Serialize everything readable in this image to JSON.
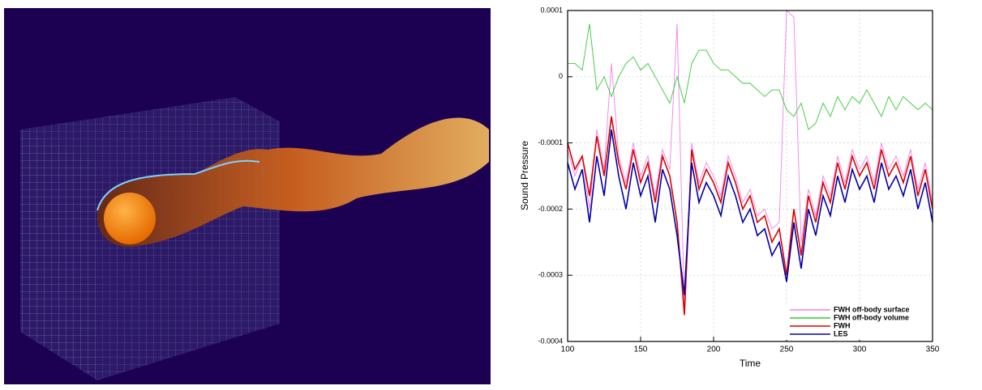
{
  "chart_data": {
    "type": "line",
    "xlabel": "Time",
    "ylabel": "Sound Pressure",
    "x": [
      100,
      105,
      110,
      115,
      120,
      125,
      130,
      135,
      140,
      145,
      150,
      155,
      160,
      165,
      170,
      175,
      180,
      185,
      190,
      195,
      200,
      205,
      210,
      215,
      220,
      225,
      230,
      235,
      240,
      245,
      250,
      255,
      260,
      265,
      270,
      275,
      280,
      285,
      290,
      295,
      300,
      305,
      310,
      315,
      320,
      325,
      330,
      335,
      340,
      345,
      350
    ],
    "xlim": [
      100,
      350
    ],
    "xticks": [
      100,
      150,
      200,
      250,
      300,
      350
    ],
    "ylim": [
      -0.0004,
      0.0001
    ],
    "yticks": [
      0.0001,
      0,
      -0.0001,
      -0.0002,
      -0.0003,
      -0.0004
    ],
    "grid": true,
    "legend": "lower right",
    "series": [
      {
        "name": "FWH off-body surface",
        "color": "#ee82ee",
        "values": [
          -0.00011,
          -0.00015,
          -0.00012,
          -0.0002,
          -8e-05,
          -0.00014,
          2e-05,
          -0.00012,
          -0.00016,
          -0.0001,
          -0.00015,
          -0.00012,
          -0.00018,
          -0.00011,
          -0.00014,
          8e-05,
          -0.00035,
          -0.0001,
          -0.00016,
          -0.00013,
          -0.00015,
          -0.00018,
          -0.00012,
          -0.00015,
          -0.00019,
          -0.00017,
          -0.00021,
          -0.0002,
          -0.00023,
          -0.00022,
          0.0001,
          9e-05,
          -0.00025,
          -0.00017,
          -0.00021,
          -0.00015,
          -0.00018,
          -0.00012,
          -0.00016,
          -0.00011,
          -0.00014,
          -0.00012,
          -0.00016,
          -0.0001,
          -0.00014,
          -0.00012,
          -0.00015,
          -0.00011,
          -0.00017,
          -0.00013,
          -0.00019
        ]
      },
      {
        "name": "FWH off-body volume",
        "color": "#33cc33",
        "values": [
          2e-05,
          2e-05,
          1e-05,
          8e-05,
          -2e-05,
          0.0,
          -3e-05,
          0.0,
          2e-05,
          3e-05,
          1e-05,
          2e-05,
          0.0,
          -2e-05,
          -4e-05,
          0.0,
          -4e-05,
          2e-05,
          4e-05,
          4e-05,
          2e-05,
          1e-05,
          1e-05,
          0.0,
          -1e-05,
          -1e-05,
          -2e-05,
          -3e-05,
          -2e-05,
          -2e-05,
          -5e-05,
          -6e-05,
          -4e-05,
          -8e-05,
          -7e-05,
          -4e-05,
          -6e-05,
          -3e-05,
          -5e-05,
          -3e-05,
          -4e-05,
          -2e-05,
          -4e-05,
          -6e-05,
          -3e-05,
          -5e-05,
          -3e-05,
          -4e-05,
          -5e-05,
          -4e-05,
          -5e-05
        ]
      },
      {
        "name": "FWH",
        "color": "#dd0000",
        "values": [
          -0.0001,
          -0.00014,
          -0.00012,
          -0.00018,
          -9e-05,
          -0.00015,
          -6e-05,
          -0.00013,
          -0.00017,
          -0.00011,
          -0.00016,
          -0.00013,
          -0.00019,
          -0.00012,
          -0.00015,
          -0.00022,
          -0.00036,
          -0.00011,
          -0.00017,
          -0.00014,
          -0.00016,
          -0.00019,
          -0.00013,
          -0.00016,
          -0.0002,
          -0.00018,
          -0.00022,
          -0.00021,
          -0.00025,
          -0.00023,
          -0.0003,
          -0.0002,
          -0.00027,
          -0.00018,
          -0.00022,
          -0.00016,
          -0.00019,
          -0.00013,
          -0.00017,
          -0.00012,
          -0.00015,
          -0.00013,
          -0.00017,
          -0.00011,
          -0.00015,
          -0.00013,
          -0.00016,
          -0.00012,
          -0.00018,
          -0.00014,
          -0.0002
        ]
      },
      {
        "name": "LES",
        "color": "#0000aa",
        "values": [
          -0.00013,
          -0.00017,
          -0.00014,
          -0.00022,
          -0.00012,
          -0.00018,
          -8e-05,
          -0.00015,
          -0.0002,
          -0.00013,
          -0.00018,
          -0.00015,
          -0.00022,
          -0.00014,
          -0.00017,
          -0.00024,
          -0.00033,
          -0.00013,
          -0.00019,
          -0.00016,
          -0.00018,
          -0.00021,
          -0.00015,
          -0.00018,
          -0.00022,
          -0.0002,
          -0.00024,
          -0.00023,
          -0.00027,
          -0.00025,
          -0.00031,
          -0.00022,
          -0.00029,
          -0.0002,
          -0.00024,
          -0.00018,
          -0.00021,
          -0.00015,
          -0.00019,
          -0.00014,
          -0.00017,
          -0.00015,
          -0.00019,
          -0.00013,
          -0.00017,
          -0.00015,
          -0.00018,
          -0.00014,
          -0.0002,
          -0.00016,
          -0.00022
        ]
      }
    ]
  }
}
